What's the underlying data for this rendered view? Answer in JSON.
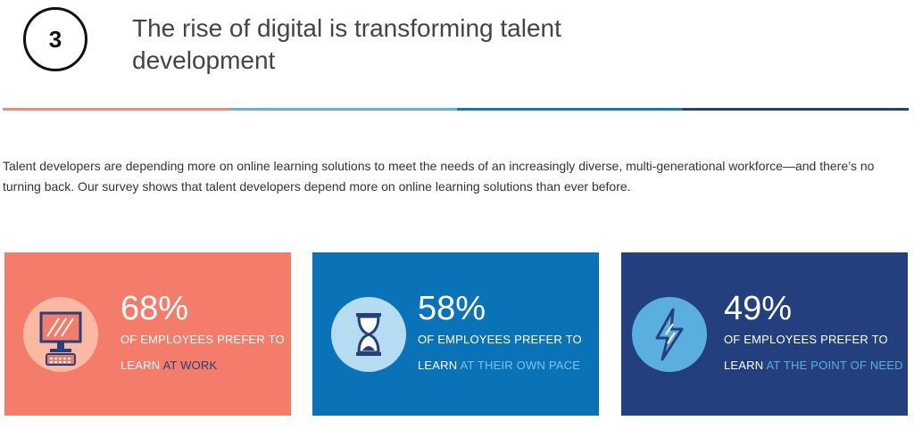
{
  "header": {
    "number": "3",
    "title": "The rise of digital is transforming talent development"
  },
  "intro": "Talent developers are depending more on online learning solutions to meet the needs of an increasingly diverse, multi-generational workforce—and there’s no turning back. Our survey shows that talent developers depend more on online learning solutions than ever before.",
  "cards": [
    {
      "stat": "68%",
      "line1": "OF EMPLOYEES PREFER TO",
      "lead": "LEARN",
      "highlight": "AT WORK"
    },
    {
      "stat": "58%",
      "line1": "OF EMPLOYEES PREFER TO",
      "lead": "LEARN",
      "highlight": "AT THEIR OWN PACE"
    },
    {
      "stat": "49%",
      "line1": "OF EMPLOYEES PREFER TO",
      "lead": "LEARN",
      "highlight": "AT THE POINT OF NEED"
    }
  ]
}
